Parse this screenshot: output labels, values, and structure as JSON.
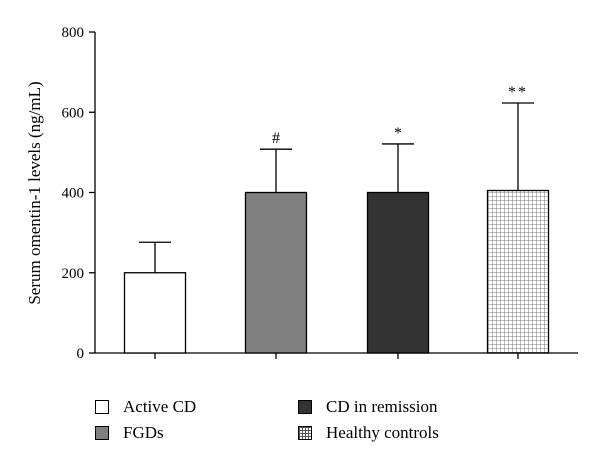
{
  "chart_data": {
    "type": "bar",
    "categories": [
      "Active CD",
      "FGDs",
      "CD in remission",
      "Healthy controls"
    ],
    "values": [
      200,
      400,
      400,
      405
    ],
    "errors": [
      76,
      108,
      121,
      218
    ],
    "significance": [
      "",
      "#",
      "*",
      "**"
    ],
    "ylabel": "Serum omentin-1 levels (ng/mL)",
    "ylim": [
      0,
      800
    ],
    "yticks": [
      0,
      200,
      400,
      600,
      800
    ],
    "grid": false,
    "legend_position": "bottom"
  },
  "fills": {
    "Active CD": "#ffffff",
    "FGDs": "#808080",
    "CD in remission": "#333333",
    "Healthy controls": "pattern-grid"
  },
  "legend": {
    "items": [
      {
        "label": "Active CD",
        "fill": "#ffffff"
      },
      {
        "label": "FGDs",
        "fill": "#808080"
      },
      {
        "label": "CD in remission",
        "fill": "#333333"
      },
      {
        "label": "Healthy controls",
        "fill": "pattern-grid"
      }
    ]
  }
}
